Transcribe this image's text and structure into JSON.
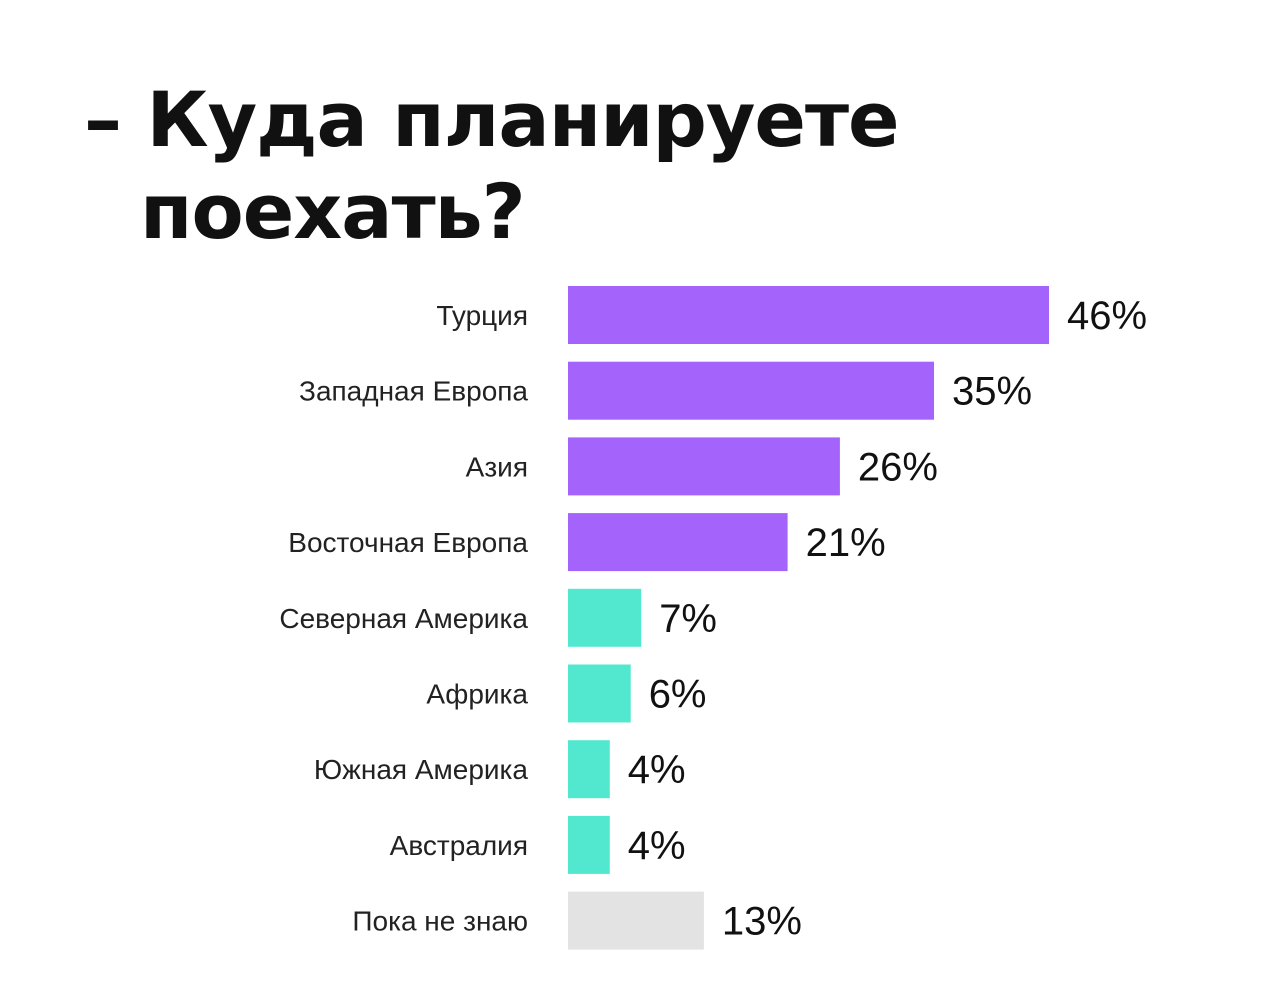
{
  "chart_data": {
    "type": "bar",
    "orientation": "horizontal",
    "title_lines": [
      "– Куда планируете",
      "поехать?"
    ],
    "xlabel": "",
    "ylabel": "",
    "xlim": [
      0,
      46
    ],
    "grid": false,
    "legend": "none",
    "categories": [
      "Турция",
      "Западная Европа",
      "Азия",
      "Восточная Европа",
      "Северная Америка",
      "Африка",
      "Южная Америка",
      "Австралия",
      "Пока не знаю"
    ],
    "values": [
      46,
      35,
      26,
      21,
      7,
      6,
      4,
      4,
      13
    ],
    "value_labels": [
      "46%",
      "35%",
      "26%",
      "21%",
      "7%",
      "6%",
      "4%",
      "4%",
      "13%"
    ],
    "bar_colors": [
      "#a463fb",
      "#a463fb",
      "#a463fb",
      "#a463fb",
      "#52e8d0",
      "#52e8d0",
      "#52e8d0",
      "#52e8d0",
      "#e3e3e3"
    ]
  }
}
